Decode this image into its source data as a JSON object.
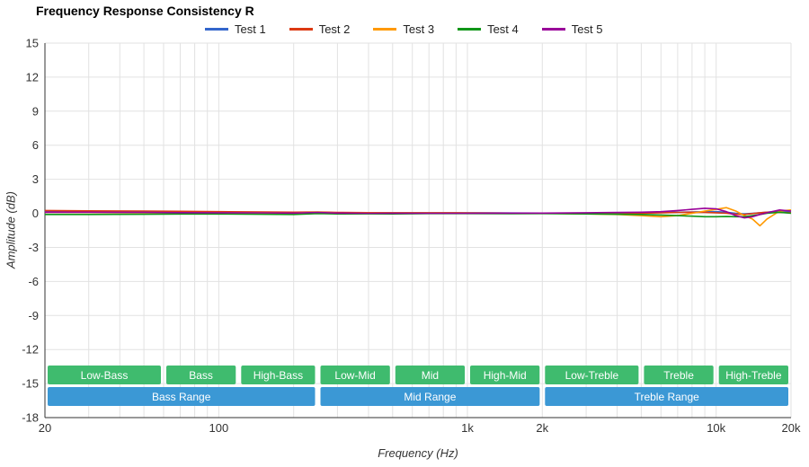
{
  "chart_data": {
    "type": "line",
    "title": "Frequency Response Consistency R",
    "xlabel": "Frequency (Hz)",
    "ylabel": "Amplitude (dB)",
    "x_scale": "log",
    "xlim": [
      20,
      20000
    ],
    "ylim": [
      -18,
      15
    ],
    "grid": true,
    "legend_position": "top",
    "y_ticks": [
      15,
      12,
      9,
      6,
      3,
      0,
      -3,
      -6,
      -9,
      -12,
      -15,
      -18
    ],
    "y_tick_labels": [
      "15",
      "12",
      "9",
      "6",
      "3",
      "0",
      "-3",
      "-6",
      "-9",
      "-12",
      "-15",
      "-18"
    ],
    "x_ticks": [
      {
        "value": 20,
        "label": "20"
      },
      {
        "value": 100,
        "label": "100"
      },
      {
        "value": 1000,
        "label": "1k"
      },
      {
        "value": 2000,
        "label": "2k"
      },
      {
        "value": 10000,
        "label": "10k"
      },
      {
        "value": 20000,
        "label": "20k"
      }
    ],
    "x": [
      20,
      30,
      50,
      70,
      100,
      150,
      200,
      250,
      300,
      400,
      500,
      700,
      1000,
      1500,
      2000,
      3000,
      4000,
      5000,
      6000,
      7000,
      8000,
      9000,
      10000,
      11000,
      12000,
      13000,
      14000,
      15000,
      16000,
      18000,
      20000
    ],
    "series": [
      {
        "name": "Test 1",
        "color": "#3366cc",
        "values": [
          0.15,
          0.12,
          0.1,
          0.1,
          0.1,
          0.08,
          0.06,
          0.1,
          0.05,
          0.05,
          0.05,
          0.05,
          0.05,
          0.03,
          0.02,
          0.0,
          0.0,
          0.05,
          0.08,
          0.1,
          0.12,
          0.15,
          0.15,
          0.1,
          0.0,
          -0.05,
          0.0,
          0.05,
          0.1,
          0.2,
          0.15
        ]
      },
      {
        "name": "Test 2",
        "color": "#dc3912",
        "values": [
          0.25,
          0.22,
          0.2,
          0.18,
          0.15,
          0.12,
          0.1,
          0.12,
          0.08,
          0.06,
          0.05,
          0.05,
          0.04,
          0.02,
          0.0,
          -0.02,
          -0.05,
          0.0,
          0.05,
          0.08,
          0.1,
          0.08,
          0.05,
          0.0,
          -0.08,
          -0.1,
          -0.02,
          0.05,
          0.1,
          0.08,
          0.05
        ]
      },
      {
        "name": "Test 3",
        "color": "#ff9900",
        "values": [
          0.1,
          0.08,
          0.06,
          0.05,
          0.05,
          0.04,
          0.02,
          0.1,
          0.02,
          0.02,
          0.0,
          0.02,
          0.02,
          0.0,
          0.0,
          -0.05,
          -0.1,
          -0.2,
          -0.3,
          -0.2,
          0.0,
          0.2,
          0.35,
          0.5,
          0.2,
          -0.2,
          -0.5,
          -1.1,
          -0.5,
          0.2,
          0.3
        ]
      },
      {
        "name": "Test 4",
        "color": "#109618",
        "values": [
          -0.1,
          -0.1,
          -0.08,
          -0.06,
          -0.06,
          -0.08,
          -0.1,
          -0.02,
          -0.05,
          -0.04,
          -0.05,
          -0.02,
          -0.02,
          -0.03,
          -0.02,
          -0.05,
          -0.08,
          -0.1,
          -0.15,
          -0.2,
          -0.25,
          -0.3,
          -0.3,
          -0.28,
          -0.3,
          -0.3,
          -0.2,
          -0.1,
          0.0,
          0.1,
          0.0
        ]
      },
      {
        "name": "Test 5",
        "color": "#990099",
        "values": [
          0.1,
          0.1,
          0.08,
          0.06,
          0.05,
          0.04,
          0.02,
          0.08,
          0.02,
          0.0,
          0.0,
          0.0,
          0.0,
          0.02,
          0.02,
          0.05,
          0.08,
          0.1,
          0.15,
          0.25,
          0.35,
          0.45,
          0.4,
          0.15,
          -0.2,
          -0.4,
          -0.3,
          -0.1,
          0.05,
          0.3,
          0.2
        ]
      }
    ]
  },
  "bands": {
    "sub_color": "#3fbb6e",
    "main_color": "#3b98d5",
    "sub": [
      {
        "label": "Low-Bass",
        "from": 20,
        "to": 60
      },
      {
        "label": "Bass",
        "from": 60,
        "to": 120
      },
      {
        "label": "High-Bass",
        "from": 120,
        "to": 250
      },
      {
        "label": "Low-Mid",
        "from": 250,
        "to": 500
      },
      {
        "label": "Mid",
        "from": 500,
        "to": 1000
      },
      {
        "label": "High-Mid",
        "from": 1000,
        "to": 2000
      },
      {
        "label": "Low-Treble",
        "from": 2000,
        "to": 5000
      },
      {
        "label": "Treble",
        "from": 5000,
        "to": 10000
      },
      {
        "label": "High-Treble",
        "from": 10000,
        "to": 20000
      }
    ],
    "main": [
      {
        "label": "Bass Range",
        "from": 20,
        "to": 250
      },
      {
        "label": "Mid Range",
        "from": 250,
        "to": 2000
      },
      {
        "label": "Treble Range",
        "from": 2000,
        "to": 20000
      }
    ]
  },
  "colors": {
    "gridline": "#e2e2e2",
    "axis": "#333333",
    "band_text": "#ffffff"
  }
}
